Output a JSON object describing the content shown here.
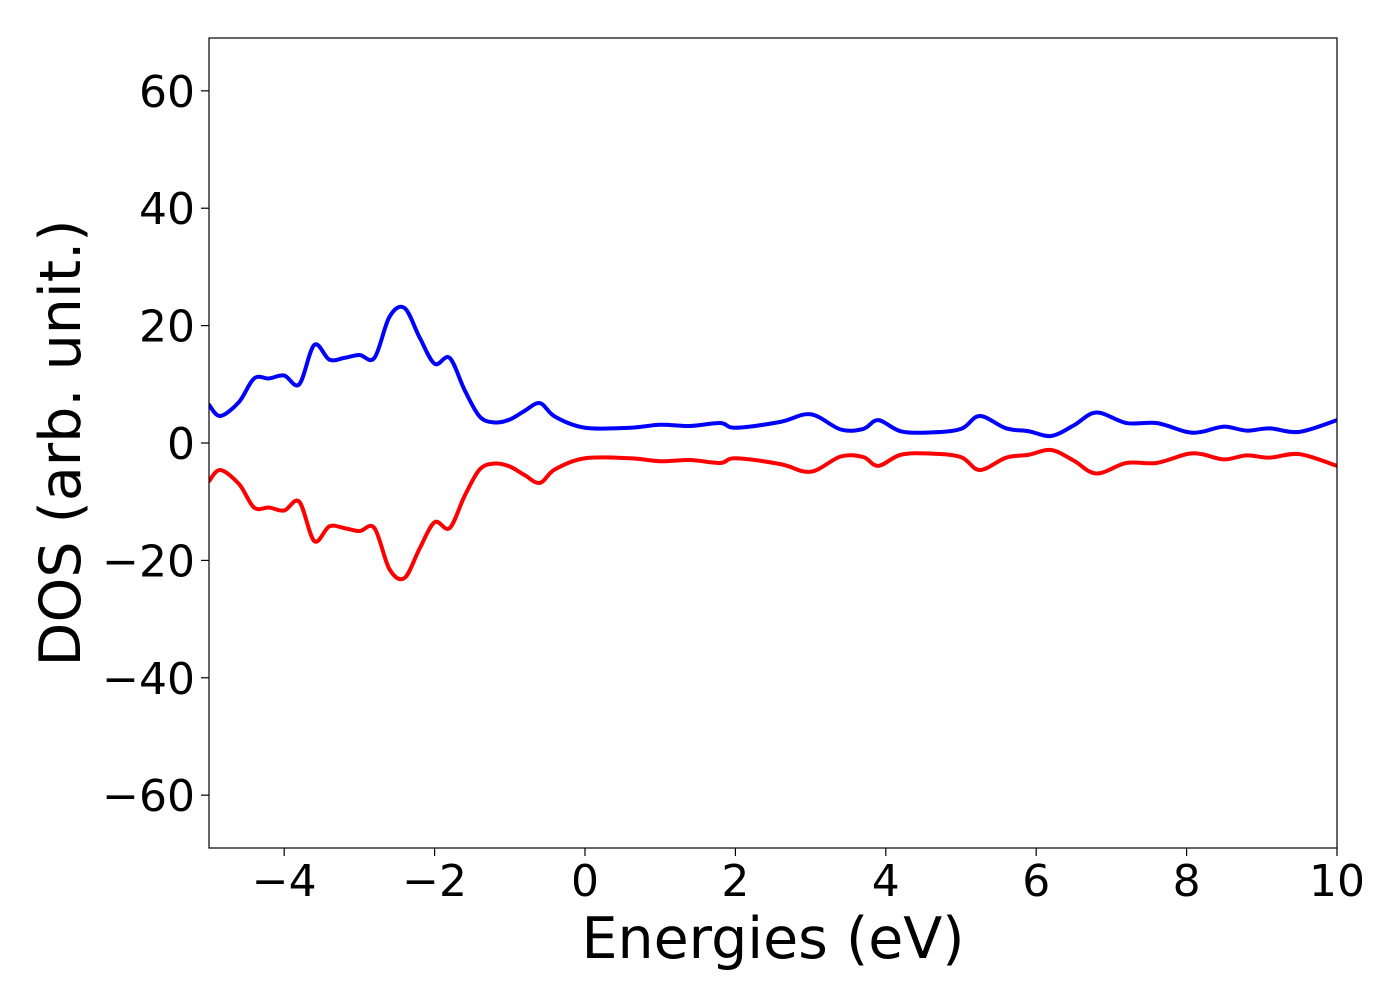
{
  "chart_data": {
    "type": "line",
    "title": "",
    "xlabel": "Energies (eV)",
    "ylabel": "DOS (arb. unit.)",
    "xlim": [
      -5,
      10
    ],
    "ylim": [
      -69,
      69
    ],
    "xticks": [
      -4,
      -2,
      0,
      2,
      4,
      6,
      8,
      10
    ],
    "yticks": [
      -60,
      -40,
      -20,
      0,
      20,
      40,
      60
    ],
    "grid": false,
    "legend": "none",
    "series": [
      {
        "color": "#0000ff",
        "points": [
          [
            -5.0,
            6.5
          ],
          [
            -4.85,
            4.6
          ],
          [
            -4.6,
            7.0
          ],
          [
            -4.4,
            11.0
          ],
          [
            -4.2,
            11.0
          ],
          [
            -4.0,
            11.5
          ],
          [
            -3.8,
            10.0
          ],
          [
            -3.6,
            16.7
          ],
          [
            -3.4,
            14.2
          ],
          [
            -3.2,
            14.5
          ],
          [
            -3.0,
            15.0
          ],
          [
            -2.8,
            14.5
          ],
          [
            -2.6,
            21.5
          ],
          [
            -2.4,
            23.0
          ],
          [
            -2.2,
            18.0
          ],
          [
            -2.0,
            13.5
          ],
          [
            -1.8,
            14.5
          ],
          [
            -1.6,
            9.0
          ],
          [
            -1.4,
            4.5
          ],
          [
            -1.2,
            3.5
          ],
          [
            -1.0,
            4.0
          ],
          [
            -0.8,
            5.5
          ],
          [
            -0.6,
            6.8
          ],
          [
            -0.4,
            4.5
          ],
          [
            0.0,
            2.6
          ],
          [
            0.6,
            2.6
          ],
          [
            1.0,
            3.1
          ],
          [
            1.4,
            2.9
          ],
          [
            1.8,
            3.4
          ],
          [
            2.0,
            2.6
          ],
          [
            2.6,
            3.6
          ],
          [
            3.0,
            4.9
          ],
          [
            3.4,
            2.3
          ],
          [
            3.7,
            2.4
          ],
          [
            3.9,
            3.9
          ],
          [
            4.2,
            2.0
          ],
          [
            4.6,
            1.8
          ],
          [
            5.0,
            2.4
          ],
          [
            5.25,
            4.6
          ],
          [
            5.6,
            2.5
          ],
          [
            5.9,
            2.0
          ],
          [
            6.2,
            1.2
          ],
          [
            6.5,
            3.0
          ],
          [
            6.8,
            5.2
          ],
          [
            7.2,
            3.4
          ],
          [
            7.6,
            3.4
          ],
          [
            8.0,
            1.9
          ],
          [
            8.2,
            1.9
          ],
          [
            8.5,
            2.8
          ],
          [
            8.8,
            2.1
          ],
          [
            9.1,
            2.5
          ],
          [
            9.5,
            1.9
          ],
          [
            10.0,
            3.9
          ]
        ]
      },
      {
        "color": "#ff0000",
        "points": [
          [
            -5.0,
            -6.5
          ],
          [
            -4.85,
            -4.6
          ],
          [
            -4.6,
            -7.0
          ],
          [
            -4.4,
            -11.0
          ],
          [
            -4.2,
            -11.0
          ],
          [
            -4.0,
            -11.5
          ],
          [
            -3.8,
            -10.0
          ],
          [
            -3.6,
            -16.7
          ],
          [
            -3.4,
            -14.2
          ],
          [
            -3.2,
            -14.5
          ],
          [
            -3.0,
            -15.0
          ],
          [
            -2.8,
            -14.5
          ],
          [
            -2.6,
            -21.5
          ],
          [
            -2.4,
            -23.0
          ],
          [
            -2.2,
            -18.0
          ],
          [
            -2.0,
            -13.5
          ],
          [
            -1.8,
            -14.5
          ],
          [
            -1.6,
            -9.0
          ],
          [
            -1.4,
            -4.5
          ],
          [
            -1.2,
            -3.5
          ],
          [
            -1.0,
            -4.0
          ],
          [
            -0.8,
            -5.5
          ],
          [
            -0.6,
            -6.8
          ],
          [
            -0.4,
            -4.5
          ],
          [
            0.0,
            -2.6
          ],
          [
            0.6,
            -2.6
          ],
          [
            1.0,
            -3.1
          ],
          [
            1.4,
            -2.9
          ],
          [
            1.8,
            -3.4
          ],
          [
            2.0,
            -2.6
          ],
          [
            2.6,
            -3.6
          ],
          [
            3.0,
            -4.9
          ],
          [
            3.4,
            -2.3
          ],
          [
            3.7,
            -2.4
          ],
          [
            3.9,
            -3.9
          ],
          [
            4.2,
            -2.0
          ],
          [
            4.6,
            -1.8
          ],
          [
            5.0,
            -2.4
          ],
          [
            5.25,
            -4.6
          ],
          [
            5.6,
            -2.5
          ],
          [
            5.9,
            -2.0
          ],
          [
            6.2,
            -1.2
          ],
          [
            6.5,
            -3.0
          ],
          [
            6.8,
            -5.2
          ],
          [
            7.2,
            -3.4
          ],
          [
            7.6,
            -3.4
          ],
          [
            8.0,
            -1.9
          ],
          [
            8.2,
            -1.9
          ],
          [
            8.5,
            -2.8
          ],
          [
            8.8,
            -2.1
          ],
          [
            9.1,
            -2.5
          ],
          [
            9.5,
            -1.9
          ],
          [
            10.0,
            -3.9
          ]
        ]
      }
    ]
  }
}
